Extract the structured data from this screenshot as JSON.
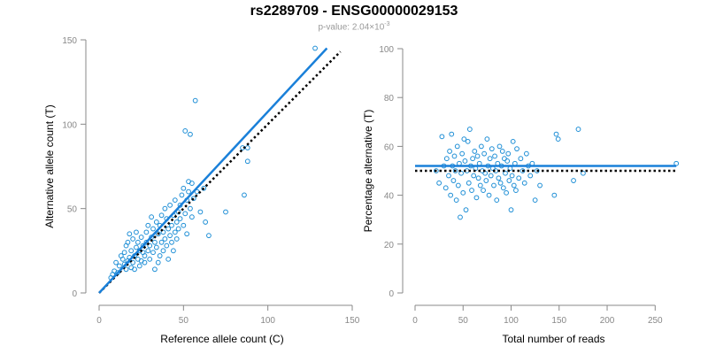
{
  "title": "rs2289709 - ENSG00000029153",
  "subtitle": {
    "prefix": "p-value: 2.04×10",
    "exponent": "-3"
  },
  "colors": {
    "points": "#1f8fd6",
    "fit_line": "#1a80d9",
    "reference_line": "#000000",
    "axes": "#888888"
  },
  "chart_data": [
    {
      "type": "scatter",
      "title": "",
      "xlabel": "Reference allele count (C)",
      "ylabel": "Alternative allele count (T)",
      "xlim": [
        0,
        150
      ],
      "ylim": [
        0,
        150
      ],
      "x_ticks": [
        0,
        50,
        100,
        150
      ],
      "y_ticks": [
        0,
        50,
        100,
        150
      ],
      "grid": false,
      "points": [
        [
          7,
          9
        ],
        [
          8,
          11
        ],
        [
          9,
          13
        ],
        [
          10,
          18
        ],
        [
          11,
          12
        ],
        [
          12,
          16
        ],
        [
          13,
          22
        ],
        [
          14,
          20
        ],
        [
          15,
          17
        ],
        [
          15,
          24
        ],
        [
          16,
          14
        ],
        [
          16,
          28
        ],
        [
          17,
          19
        ],
        [
          17,
          30
        ],
        [
          18,
          21
        ],
        [
          18,
          35
        ],
        [
          19,
          15
        ],
        [
          19,
          25
        ],
        [
          20,
          18
        ],
        [
          20,
          32
        ],
        [
          21,
          22
        ],
        [
          21,
          14
        ],
        [
          22,
          27
        ],
        [
          22,
          36
        ],
        [
          23,
          20
        ],
        [
          23,
          30
        ],
        [
          24,
          16
        ],
        [
          24,
          25
        ],
        [
          25,
          19
        ],
        [
          25,
          33
        ],
        [
          26,
          24
        ],
        [
          26,
          28
        ],
        [
          27,
          22
        ],
        [
          27,
          18
        ],
        [
          28,
          30
        ],
        [
          28,
          36
        ],
        [
          29,
          25
        ],
        [
          29,
          40
        ],
        [
          30,
          20
        ],
        [
          30,
          28
        ],
        [
          31,
          33
        ],
        [
          31,
          45
        ],
        [
          32,
          24
        ],
        [
          32,
          38
        ],
        [
          33,
          14
        ],
        [
          33,
          30
        ],
        [
          34,
          27
        ],
        [
          34,
          42
        ],
        [
          35,
          35
        ],
        [
          35,
          18
        ],
        [
          36,
          40
        ],
        [
          36,
          22
        ],
        [
          37,
          30
        ],
        [
          37,
          46
        ],
        [
          38,
          25
        ],
        [
          38,
          36
        ],
        [
          39,
          32
        ],
        [
          39,
          50
        ],
        [
          40,
          28
        ],
        [
          40,
          44
        ],
        [
          41,
          38
        ],
        [
          41,
          20
        ],
        [
          42,
          34
        ],
        [
          42,
          52
        ],
        [
          43,
          40
        ],
        [
          43,
          30
        ],
        [
          44,
          46
        ],
        [
          44,
          25
        ],
        [
          45,
          36
        ],
        [
          45,
          55
        ],
        [
          46,
          42
        ],
        [
          46,
          32
        ],
        [
          47,
          48
        ],
        [
          47,
          38
        ],
        [
          48,
          52
        ],
        [
          48,
          44
        ],
        [
          49,
          58
        ],
        [
          50,
          40
        ],
        [
          50,
          62
        ],
        [
          51,
          47
        ],
        [
          51,
          96
        ],
        [
          52,
          55
        ],
        [
          52,
          35
        ],
        [
          53,
          60
        ],
        [
          53,
          66
        ],
        [
          54,
          50
        ],
        [
          54,
          94
        ],
        [
          55,
          45
        ],
        [
          55,
          65
        ],
        [
          56,
          56
        ],
        [
          57,
          114
        ],
        [
          58,
          60
        ],
        [
          60,
          48
        ],
        [
          62,
          62
        ],
        [
          63,
          42
        ],
        [
          65,
          34
        ],
        [
          75,
          48
        ],
        [
          85,
          86
        ],
        [
          86,
          58
        ],
        [
          88,
          78
        ],
        [
          88,
          86
        ],
        [
          128,
          145
        ]
      ],
      "fit_line": [
        [
          0,
          0
        ],
        [
          135,
          145
        ]
      ],
      "reference_line": [
        [
          0,
          0
        ],
        [
          143,
          143
        ]
      ]
    },
    {
      "type": "scatter",
      "title": "",
      "xlabel": "Total number of reads",
      "ylabel": "Percentage alternative (T)",
      "xlim": [
        0,
        270
      ],
      "ylim": [
        0,
        100
      ],
      "x_ticks": [
        0,
        50,
        100,
        150,
        200,
        250
      ],
      "y_ticks": [
        0,
        20,
        40,
        60,
        80,
        100
      ],
      "grid": false,
      "points": [
        [
          22,
          50
        ],
        [
          25,
          45
        ],
        [
          28,
          64
        ],
        [
          30,
          52
        ],
        [
          32,
          43
        ],
        [
          33,
          55
        ],
        [
          35,
          48
        ],
        [
          36,
          58
        ],
        [
          37,
          40
        ],
        [
          38,
          65
        ],
        [
          39,
          52
        ],
        [
          40,
          46
        ],
        [
          41,
          56
        ],
        [
          42,
          50
        ],
        [
          43,
          38
        ],
        [
          44,
          60
        ],
        [
          45,
          44
        ],
        [
          46,
          53
        ],
        [
          47,
          31
        ],
        [
          48,
          49
        ],
        [
          49,
          57
        ],
        [
          50,
          41
        ],
        [
          51,
          63
        ],
        [
          52,
          54
        ],
        [
          53,
          34
        ],
        [
          54,
          50
        ],
        [
          55,
          62
        ],
        [
          56,
          45
        ],
        [
          57,
          67
        ],
        [
          58,
          52
        ],
        [
          59,
          42
        ],
        [
          60,
          55
        ],
        [
          61,
          48
        ],
        [
          62,
          58
        ],
        [
          63,
          51
        ],
        [
          64,
          39
        ],
        [
          65,
          56
        ],
        [
          66,
          47
        ],
        [
          67,
          53
        ],
        [
          68,
          44
        ],
        [
          69,
          60
        ],
        [
          70,
          50
        ],
        [
          71,
          42
        ],
        [
          72,
          57
        ],
        [
          73,
          49
        ],
        [
          74,
          46
        ],
        [
          75,
          63
        ],
        [
          76,
          52
        ],
        [
          77,
          40
        ],
        [
          78,
          55
        ],
        [
          79,
          48
        ],
        [
          80,
          59
        ],
        [
          81,
          51
        ],
        [
          82,
          44
        ],
        [
          83,
          56
        ],
        [
          84,
          50
        ],
        [
          85,
          38
        ],
        [
          86,
          53
        ],
        [
          87,
          47
        ],
        [
          88,
          60
        ],
        [
          89,
          45
        ],
        [
          90,
          52
        ],
        [
          91,
          58
        ],
        [
          92,
          43
        ],
        [
          93,
          55
        ],
        [
          94,
          49
        ],
        [
          95,
          41
        ],
        [
          96,
          54
        ],
        [
          97,
          57
        ],
        [
          98,
          46
        ],
        [
          99,
          51
        ],
        [
          100,
          34
        ],
        [
          101,
          48
        ],
        [
          102,
          62
        ],
        [
          103,
          44
        ],
        [
          104,
          53
        ],
        [
          105,
          42
        ],
        [
          106,
          59
        ],
        [
          108,
          47
        ],
        [
          110,
          55
        ],
        [
          112,
          50
        ],
        [
          114,
          45
        ],
        [
          116,
          57
        ],
        [
          118,
          52
        ],
        [
          120,
          48
        ],
        [
          122,
          53
        ],
        [
          125,
          38
        ],
        [
          127,
          50
        ],
        [
          130,
          44
        ],
        [
          145,
          40
        ],
        [
          147,
          65
        ],
        [
          149,
          63
        ],
        [
          165,
          46
        ],
        [
          170,
          67
        ],
        [
          175,
          49
        ],
        [
          272,
          53
        ]
      ],
      "fit_line": [
        [
          0,
          52
        ],
        [
          272,
          52
        ]
      ],
      "reference_line": [
        [
          0,
          50
        ],
        [
          272,
          50
        ]
      ]
    }
  ]
}
